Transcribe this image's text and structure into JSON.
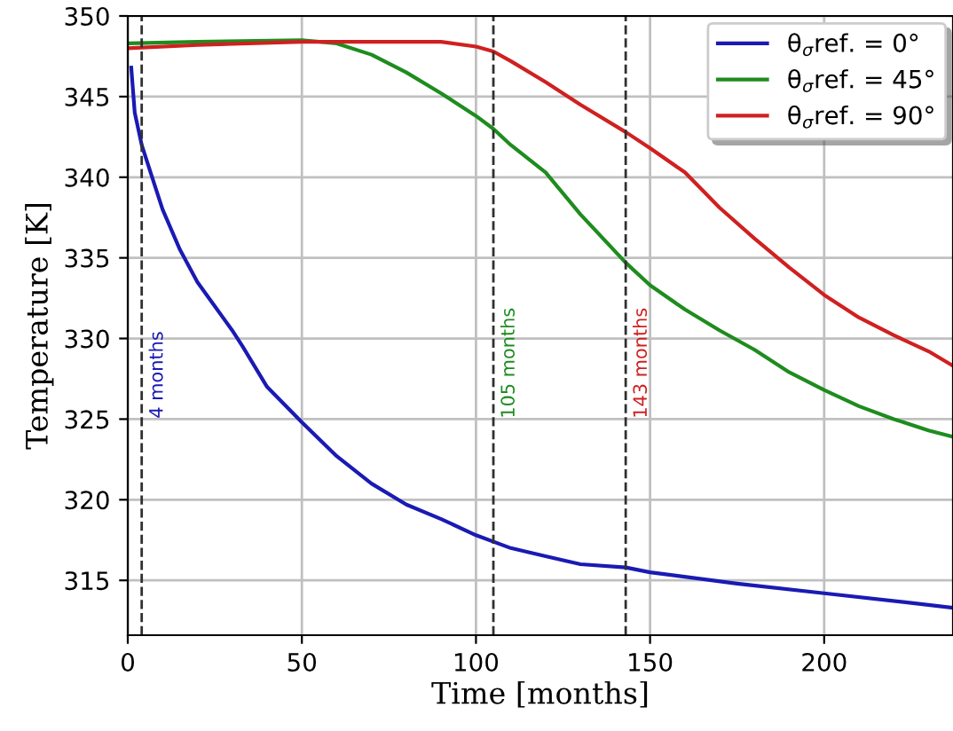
{
  "chart_data": {
    "type": "line",
    "xlabel": "Time [months]",
    "ylabel": "Temperature [K]",
    "xlim": [
      0,
      237
    ],
    "ylim": [
      311.6,
      350
    ],
    "xticks": [
      0,
      50,
      100,
      150,
      200
    ],
    "yticks": [
      315,
      320,
      325,
      330,
      335,
      340,
      345,
      350
    ],
    "grid": true,
    "legend": "top right",
    "line_style": "solid",
    "marker": "none",
    "series": [
      {
        "name": "θ$_{σ}$ref. = 0°",
        "color": "#1a1ab4",
        "x": [
          1,
          2,
          4,
          7,
          10,
          15,
          20,
          25,
          30,
          33,
          40,
          50,
          60,
          70,
          80,
          90,
          100,
          110,
          120,
          130,
          143,
          150,
          175,
          200,
          225,
          237
        ],
        "values": [
          346.8,
          344,
          342,
          340,
          338,
          335.5,
          333.5,
          332,
          330.5,
          329.5,
          327,
          324.8,
          322.7,
          321,
          319.7,
          318.8,
          317.8,
          317,
          316.5,
          316,
          315.8,
          315.5,
          314.8,
          314.2,
          313.6,
          313.3
        ]
      },
      {
        "name": "θ$_{σ}$ref. = 45°",
        "color": "#1e8c1e",
        "x": [
          0,
          20,
          50,
          60,
          70,
          80,
          90,
          100,
          105,
          110,
          120,
          130,
          143,
          150,
          160,
          170,
          180,
          190,
          200,
          210,
          220,
          230,
          237
        ],
        "values": [
          348.3,
          348.4,
          348.5,
          348.3,
          347.6,
          346.5,
          345.2,
          343.8,
          343,
          342,
          340.3,
          337.7,
          334.7,
          333.3,
          331.8,
          330.5,
          329.3,
          327.9,
          326.8,
          325.8,
          325,
          324.3,
          323.9
        ]
      },
      {
        "name": "θ$_{σ}$ref. = 90°",
        "color": "#d02020",
        "x": [
          0,
          20,
          50,
          80,
          90,
          100,
          105,
          110,
          120,
          130,
          143,
          150,
          160,
          170,
          180,
          190,
          200,
          210,
          220,
          230,
          237
        ],
        "values": [
          348,
          348.2,
          348.4,
          348.4,
          348.4,
          348.1,
          347.8,
          347.2,
          345.9,
          344.5,
          342.8,
          341.8,
          340.3,
          338.1,
          336.2,
          334.4,
          332.7,
          331.3,
          330.2,
          329.2,
          328.3
        ]
      }
    ],
    "ref_lines": [
      {
        "axis": "x",
        "value": 4,
        "label": "4 months",
        "line_style": "dashed"
      },
      {
        "axis": "x",
        "value": 105,
        "label": "105 months",
        "line_style": "dashed"
      },
      {
        "axis": "x",
        "value": 143,
        "label": "143 months",
        "line_style": "dashed"
      }
    ]
  }
}
